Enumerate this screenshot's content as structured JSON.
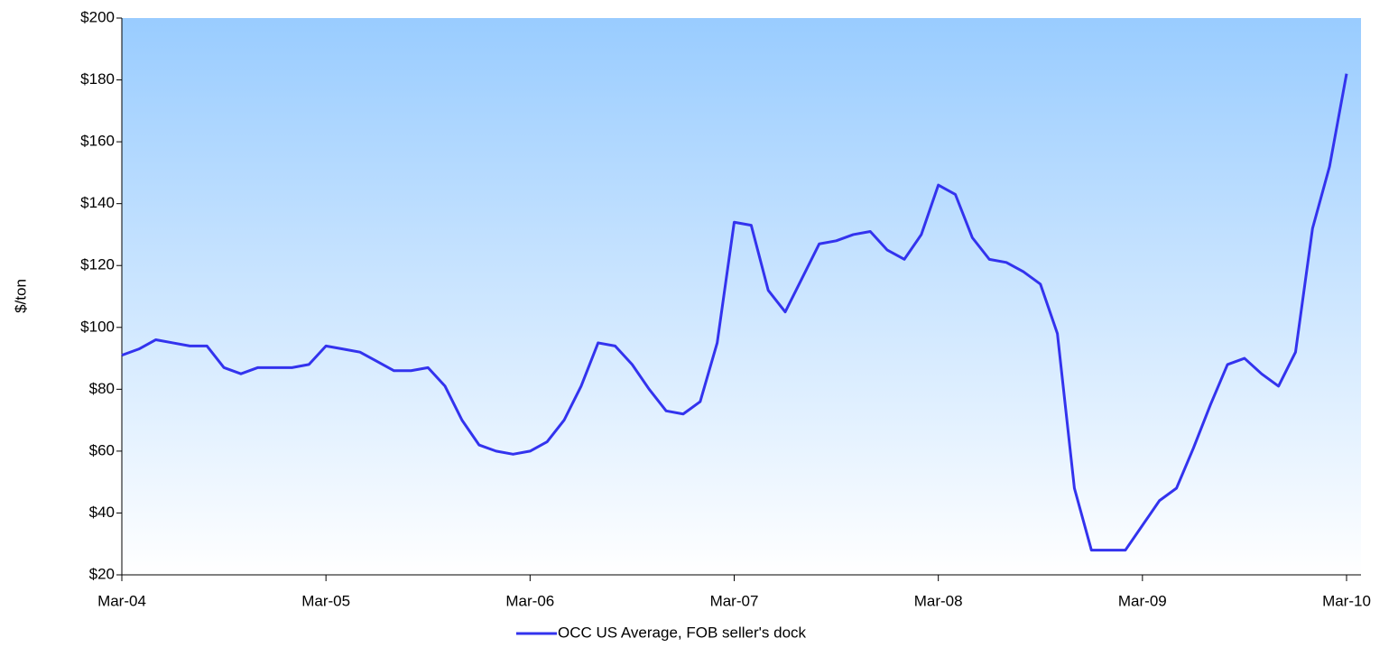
{
  "chart_data": {
    "type": "line",
    "y_label": "$/ton",
    "categories": [
      "Mar-04",
      null,
      null,
      null,
      null,
      null,
      null,
      null,
      null,
      null,
      null,
      null,
      "Mar-05",
      null,
      null,
      null,
      null,
      null,
      null,
      null,
      null,
      null,
      null,
      null,
      "Mar-06",
      null,
      null,
      null,
      null,
      null,
      null,
      null,
      null,
      null,
      null,
      null,
      "Mar-07",
      null,
      null,
      null,
      null,
      null,
      null,
      null,
      null,
      null,
      null,
      null,
      "Mar-08",
      null,
      null,
      null,
      null,
      null,
      null,
      null,
      null,
      null,
      null,
      null,
      "Mar-09",
      null,
      null,
      null,
      null,
      null,
      null,
      null,
      null,
      null,
      null,
      null,
      "Mar-10"
    ],
    "series": [
      {
        "name": "OCC US Average, FOB seller's dock",
        "color": "#3333ee",
        "values": [
          91,
          93,
          96,
          95,
          94,
          94,
          87,
          85,
          87,
          87,
          87,
          88,
          94,
          93,
          92,
          89,
          86,
          86,
          87,
          81,
          70,
          62,
          60,
          59,
          60,
          63,
          70,
          81,
          95,
          94,
          88,
          80,
          73,
          72,
          76,
          95,
          134,
          133,
          112,
          105,
          116,
          127,
          128,
          130,
          131,
          125,
          122,
          130,
          146,
          143,
          129,
          122,
          121,
          118,
          114,
          98,
          48,
          28,
          28,
          28,
          36,
          44,
          48,
          61,
          75,
          88,
          90,
          85,
          81,
          92,
          132,
          152,
          182
        ]
      }
    ],
    "ylim": [
      20,
      200
    ],
    "yticks": [
      {
        "value": 20,
        "label": "$20"
      },
      {
        "value": 40,
        "label": "$40"
      },
      {
        "value": 60,
        "label": "$60"
      },
      {
        "value": 80,
        "label": "$80"
      },
      {
        "value": 100,
        "label": "$100"
      },
      {
        "value": 120,
        "label": "$120"
      },
      {
        "value": 140,
        "label": "$140"
      },
      {
        "value": 160,
        "label": "$160"
      },
      {
        "value": 180,
        "label": "$180"
      },
      {
        "value": 200,
        "label": "$200"
      }
    ],
    "legend": "bottom"
  }
}
